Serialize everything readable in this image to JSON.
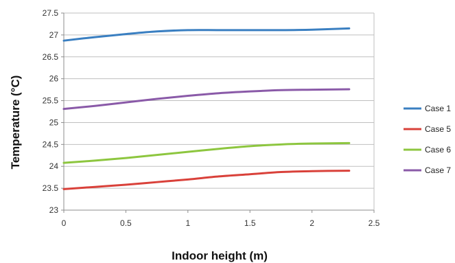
{
  "chart_data": {
    "type": "line",
    "xlabel": "Indoor height (m)",
    "ylabel": "Temperature (°C)",
    "xlim": [
      0,
      2.5
    ],
    "ylim": [
      23,
      27.5
    ],
    "xticks": [
      "0",
      "0.5",
      "1",
      "1.5",
      "2",
      "2.5"
    ],
    "yticks": [
      "23",
      "23.5",
      "24",
      "24.5",
      "25",
      "25.5",
      "26",
      "26.5",
      "27",
      "27.5"
    ],
    "grid": "horizontal",
    "legend_position": "right",
    "series": [
      {
        "name": "Case 1",
        "color": "#3a7fc1",
        "x": [
          0,
          0.25,
          0.5,
          0.75,
          1.0,
          1.25,
          1.5,
          1.75,
          2.0,
          2.3
        ],
        "y": [
          26.87,
          26.95,
          27.02,
          27.08,
          27.11,
          27.11,
          27.11,
          27.11,
          27.12,
          27.15
        ]
      },
      {
        "name": "Case 5",
        "color": "#d9413a",
        "x": [
          0,
          0.25,
          0.5,
          0.75,
          1.0,
          1.25,
          1.5,
          1.75,
          2.0,
          2.3
        ],
        "y": [
          23.48,
          23.53,
          23.58,
          23.64,
          23.7,
          23.77,
          23.82,
          23.87,
          23.89,
          23.9
        ]
      },
      {
        "name": "Case 6",
        "color": "#8dc63f",
        "x": [
          0,
          0.25,
          0.5,
          0.75,
          1.0,
          1.25,
          1.5,
          1.75,
          2.0,
          2.3
        ],
        "y": [
          24.08,
          24.13,
          24.19,
          24.26,
          24.33,
          24.4,
          24.46,
          24.5,
          24.52,
          24.53
        ]
      },
      {
        "name": "Case 7",
        "color": "#8a5aa8",
        "x": [
          0,
          0.25,
          0.5,
          0.75,
          1.0,
          1.25,
          1.5,
          1.75,
          2.0,
          2.3
        ],
        "y": [
          25.31,
          25.38,
          25.46,
          25.54,
          25.61,
          25.67,
          25.71,
          25.74,
          25.75,
          25.76
        ]
      }
    ]
  }
}
